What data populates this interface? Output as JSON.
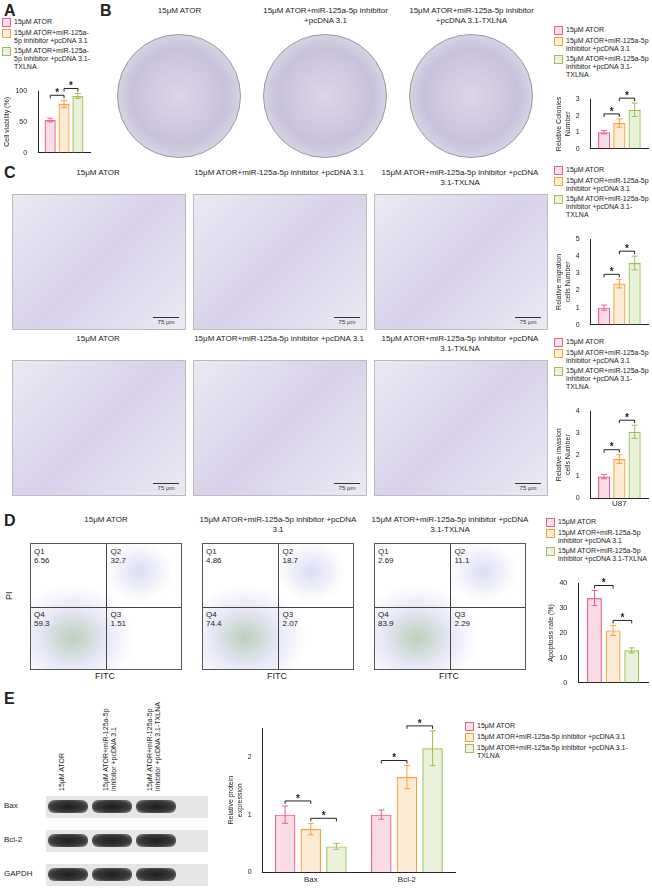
{
  "chart_data": [
    {
      "type": "bar",
      "y_label": "Cell viability (%)",
      "categories": [
        null
      ],
      "series": [
        {
          "name": "15μM ATOR",
          "color": "#e8618c",
          "values": [
            53
          ],
          "errors": [
            3
          ]
        },
        {
          "name": "15μM ATOR+miR-125a-5p inhibitor +pcDNA 3.1",
          "color": "#f2a33a",
          "values": [
            79
          ],
          "errors": [
            6
          ]
        },
        {
          "name": "15μM ATOR+miR-125a-5p inhibitor +pcDNA 3.1-TXLNA",
          "color": "#9fbf55",
          "values": [
            92
          ],
          "errors": [
            4
          ]
        }
      ],
      "ylim": [
        0,
        100
      ],
      "yticks": [
        0,
        50,
        100
      ],
      "grid": false,
      "legend": "top",
      "significance": [
        {
          "category": 0,
          "pair": [
            0,
            1
          ],
          "label": "*"
        },
        {
          "category": 0,
          "pair": [
            1,
            2
          ],
          "label": "*"
        }
      ]
    },
    {
      "type": "bar",
      "y_label": "Relative Colonies Number",
      "categories": [
        null
      ],
      "series": [
        {
          "name": "15μM ATOR",
          "color": "#e8618c",
          "values": [
            1.0
          ],
          "errors": [
            0.1
          ]
        },
        {
          "name": "15μM ATOR+miR-125a-5p inhibitor +pcDNA 3.1",
          "color": "#f2a33a",
          "values": [
            1.55
          ],
          "errors": [
            0.25
          ]
        },
        {
          "name": "15μM ATOR+miR-125a-5p inhibitor +pcDNA 3.1-TXLNA",
          "color": "#9fbf55",
          "values": [
            2.35
          ],
          "errors": [
            0.4
          ]
        }
      ],
      "ylim": [
        0,
        3
      ],
      "yticks": [
        0,
        1,
        2,
        3
      ],
      "grid": false,
      "legend": "top",
      "significance": [
        {
          "category": 0,
          "pair": [
            0,
            1
          ],
          "label": "*"
        },
        {
          "category": 0,
          "pair": [
            1,
            2
          ],
          "label": "*"
        }
      ]
    },
    {
      "type": "bar",
      "y_label": "Relative migration cells Number",
      "categories": [
        null
      ],
      "series": [
        {
          "name": "15μM ATOR",
          "color": "#e8618c",
          "values": [
            1.0
          ],
          "errors": [
            0.15
          ]
        },
        {
          "name": "15μM ATOR+miR-125a-5p inhibitor +pcDNA 3.1",
          "color": "#f2a33a",
          "values": [
            2.4
          ],
          "errors": [
            0.25
          ]
        },
        {
          "name": "15μM ATOR+miR-125a-5p inhibitor +pcDNA 3.1-TXLNA",
          "color": "#9fbf55",
          "values": [
            3.6
          ],
          "errors": [
            0.4
          ]
        }
      ],
      "ylim": [
        0,
        5
      ],
      "yticks": [
        0,
        1,
        2,
        3,
        4,
        5
      ],
      "grid": false,
      "legend": "top",
      "significance": [
        {
          "category": 0,
          "pair": [
            0,
            1
          ],
          "label": "*"
        },
        {
          "category": 0,
          "pair": [
            1,
            2
          ],
          "label": "*"
        }
      ]
    },
    {
      "type": "bar",
      "y_label": "Relative invasion cells Number",
      "x_label": "U87",
      "categories": [
        null
      ],
      "series": [
        {
          "name": "15μM ATOR",
          "color": "#e8618c",
          "values": [
            1.0
          ],
          "errors": [
            0.1
          ]
        },
        {
          "name": "15μM ATOR+miR-125a-5p inhibitor +pcDNA 3.1",
          "color": "#f2a33a",
          "values": [
            1.8
          ],
          "errors": [
            0.2
          ]
        },
        {
          "name": "15μM ATOR+miR-125a-5p inhibitor +pcDNA 3.1-TXLNA",
          "color": "#9fbf55",
          "values": [
            3.05
          ],
          "errors": [
            0.3
          ]
        }
      ],
      "ylim": [
        0,
        4
      ],
      "yticks": [
        0,
        1,
        2,
        3,
        4
      ],
      "grid": false,
      "legend": "top",
      "significance": [
        {
          "category": 0,
          "pair": [
            0,
            1
          ],
          "label": "*"
        },
        {
          "category": 0,
          "pair": [
            1,
            2
          ],
          "label": "*"
        }
      ]
    },
    {
      "type": "bar",
      "y_label": "Apoptosis rate (%)",
      "categories": [
        null
      ],
      "series": [
        {
          "name": "15μM ATOR",
          "color": "#e8618c",
          "values": [
            34
          ],
          "errors": [
            3
          ]
        },
        {
          "name": "15μM ATOR+miR-125a-5p inhibitor +pcDNA 3.1",
          "color": "#f2a33a",
          "values": [
            21
          ],
          "errors": [
            2
          ]
        },
        {
          "name": "15μM ATOR+miR-125a-5p inhibitor +pcDNA 3.1-TXLNA",
          "color": "#9fbf55",
          "values": [
            13
          ],
          "errors": [
            1
          ]
        }
      ],
      "ylim": [
        0,
        40
      ],
      "yticks": [
        0,
        10,
        20,
        30,
        40
      ],
      "grid": false,
      "legend": "top",
      "significance": [
        {
          "category": 0,
          "pair": [
            0,
            1
          ],
          "label": "*"
        },
        {
          "category": 0,
          "pair": [
            1,
            2
          ],
          "label": "*"
        }
      ]
    },
    {
      "type": "bar",
      "y_label": "Relative protein expression",
      "categories": [
        "Bax",
        "Bcl-2"
      ],
      "series": [
        {
          "name": "15μM ATOR",
          "color": "#e8618c",
          "values": [
            1.0,
            1.0
          ],
          "errors": [
            0.15,
            0.08
          ]
        },
        {
          "name": "15μM ATOR+miR-125a-5p inhibitor +pcDNA 3.1",
          "color": "#f2a33a",
          "values": [
            0.75,
            1.65
          ],
          "errors": [
            0.1,
            0.2
          ]
        },
        {
          "name": "15μM ATOR+miR-125a-5p inhibitor +pcDNA 3.1-TXLNA",
          "color": "#9fbf55",
          "values": [
            0.45,
            2.15
          ],
          "errors": [
            0.05,
            0.3
          ]
        }
      ],
      "ylim": [
        0,
        2.5
      ],
      "yticks": [
        0,
        1,
        2
      ],
      "grid": false,
      "legend": "right",
      "significance": [
        {
          "category": 0,
          "pair": [
            0,
            1
          ],
          "label": "*"
        },
        {
          "category": 0,
          "pair": [
            1,
            2
          ],
          "label": "*"
        },
        {
          "category": 1,
          "pair": [
            0,
            1
          ],
          "label": "*"
        },
        {
          "category": 1,
          "pair": [
            1,
            2
          ],
          "label": "*"
        }
      ]
    }
  ],
  "figure": {
    "panel_letters": [
      "A",
      "B",
      "C",
      "D",
      "E"
    ],
    "colony_plates": {
      "titles": [
        "15μM ATOR",
        "15μM ATOR+miR-125a-5p inhibitor +pcDNA 3.1",
        "15μM ATOR+miR-125a-5p inhibitor +pcDNA 3.1-TXLNA"
      ]
    },
    "transwell": {
      "rows": [
        [
          {
            "title": "15μM ATOR",
            "scale_bar": "75 μm"
          },
          {
            "title": "15μM ATOR+miR-125a-5p inhibitor +pcDNA 3.1",
            "scale_bar": "75 μm"
          },
          {
            "title": "15μM ATOR+miR-125a-5p inhibitor +pcDNA 3.1-TXLNA",
            "scale_bar": "75 μm"
          }
        ],
        [
          {
            "title": "15μM ATOR",
            "scale_bar": "75 μm"
          },
          {
            "title": "15μM ATOR+miR-125a-5p inhibitor +pcDNA 3.1",
            "scale_bar": "75 μm"
          },
          {
            "title": "15μM ATOR+miR-125a-5p inhibitor +pcDNA 3.1-TXLNA",
            "scale_bar": "75 μm"
          }
        ]
      ]
    },
    "flow": {
      "x_label": "FITC",
      "y_label": "PI",
      "plots": [
        {
          "title": "15μM ATOR",
          "quadrants": [
            {
              "name": "Q1",
              "value": 6.56
            },
            {
              "name": "Q2",
              "value": 32.7
            },
            {
              "name": "Q3",
              "value": 1.51
            },
            {
              "name": "Q4",
              "value": 59.3
            }
          ]
        },
        {
          "title": "15μM ATOR+miR-125a-5p inhibitor +pcDNA 3.1",
          "quadrants": [
            {
              "name": "Q1",
              "value": 4.86
            },
            {
              "name": "Q2",
              "value": 18.7
            },
            {
              "name": "Q3",
              "value": 2.07
            },
            {
              "name": "Q4",
              "value": 74.4
            }
          ]
        },
        {
          "title": "15μM ATOR+miR-125a-5p inhibitor +pcDNA 3.1-TXLNA",
          "quadrants": [
            {
              "name": "Q1",
              "value": 2.69
            },
            {
              "name": "Q2",
              "value": 11.1
            },
            {
              "name": "Q3",
              "value": 2.29
            },
            {
              "name": "Q4",
              "value": 83.9
            }
          ]
        }
      ]
    },
    "blot": {
      "columns": [
        "15μM ATOR",
        "15μM ATOR+miR-125a-5p inhibitor +pcDNA 3.1",
        "15μM ATOR+miR-125a-5p inhibitor +pcDNA 3.1-TXLNA"
      ],
      "rows": [
        "Bax",
        "Bcl-2",
        "GAPDH"
      ]
    }
  }
}
